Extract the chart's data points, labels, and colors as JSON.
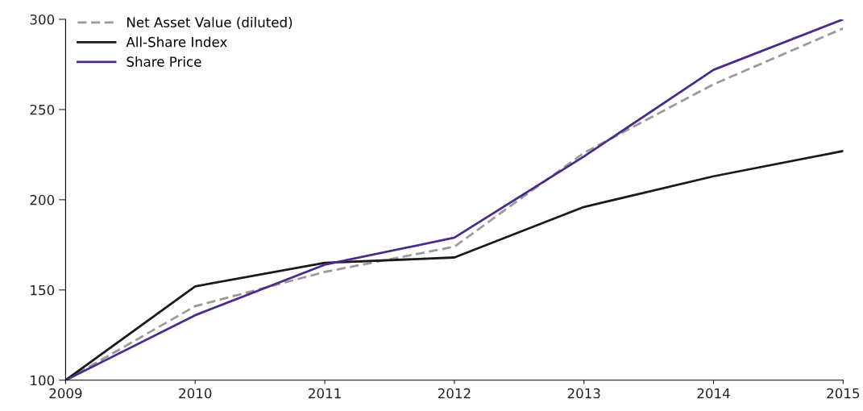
{
  "chart_data": {
    "type": "line",
    "categories": [
      "2009",
      "2010",
      "2011",
      "2012",
      "2013",
      "2014",
      "2015"
    ],
    "series": [
      {
        "name": "Net Asset Value (diluted)",
        "color": "#9a9a9a",
        "line_style": "dashed",
        "values": [
          100,
          141,
          160,
          174,
          226,
          264,
          295
        ]
      },
      {
        "name": "All-Share Index",
        "color": "#1a1a1a",
        "line_style": "solid",
        "values": [
          100,
          152,
          165,
          168,
          196,
          213,
          227
        ]
      },
      {
        "name": "Share Price",
        "color": "#4b2a8c",
        "line_style": "solid",
        "values": [
          100,
          136,
          164,
          179,
          224,
          272,
          300
        ]
      }
    ],
    "ylim": [
      100,
      300
    ],
    "yticks": [
      100,
      150,
      200,
      250,
      300
    ],
    "grid": false,
    "legend": "top left",
    "marker": "none"
  }
}
